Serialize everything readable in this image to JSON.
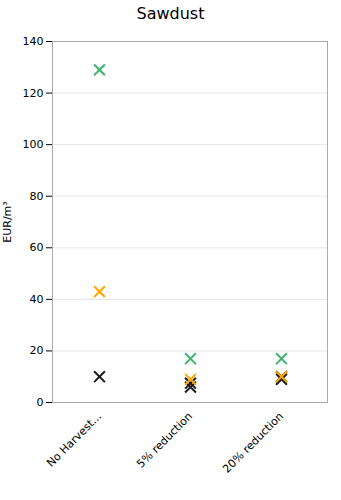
{
  "chart_data": {
    "type": "scatter",
    "title": "Sawdust",
    "ylabel": "EUR/m³",
    "categories": [
      "No Harvest...",
      "5% reduction",
      "20% reduction"
    ],
    "series": [
      {
        "color": "#1a1a1a",
        "marker": "x",
        "x": [
          "No Harvest...",
          "5% reduction",
          "5% reduction",
          "20% reduction",
          "20% reduction"
        ],
        "values": [
          10,
          6,
          7.5,
          9,
          10
        ]
      },
      {
        "color": "#FFA500",
        "marker": "x",
        "x": [
          "No Harvest...",
          "5% reduction",
          "20% reduction"
        ],
        "values": [
          43,
          9,
          10
        ]
      },
      {
        "color": "#3CB371",
        "marker": "x",
        "x": [
          "No Harvest...",
          "5% reduction",
          "20% reduction"
        ],
        "values": [
          129,
          17,
          17
        ]
      }
    ],
    "ylim": [
      0,
      140
    ],
    "yticks": [
      0,
      20,
      40,
      60,
      80,
      100,
      120,
      140
    ],
    "grid": true
  }
}
